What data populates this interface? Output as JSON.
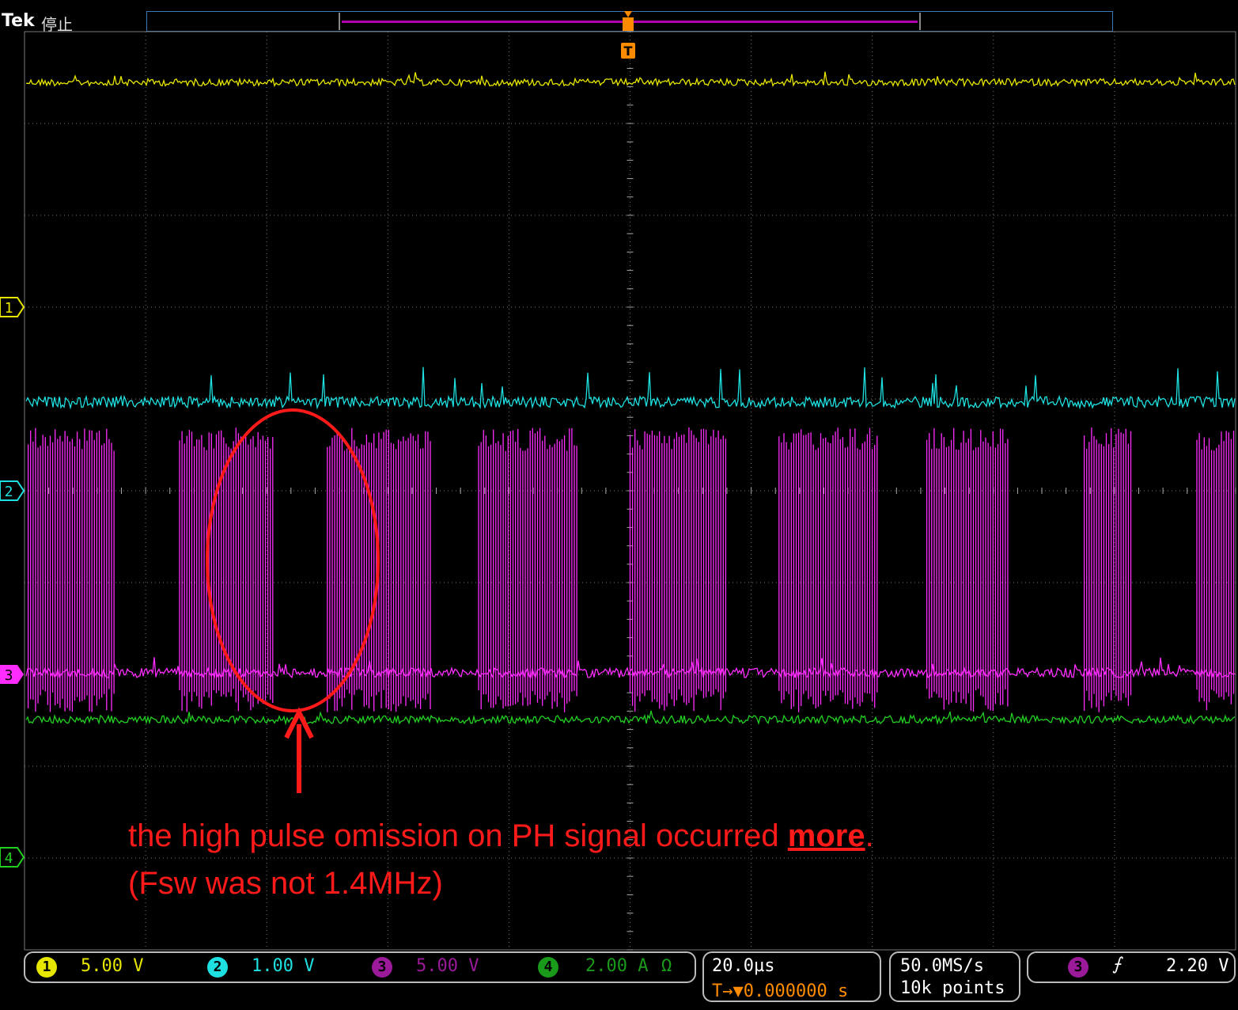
{
  "header": {
    "brand": "Tek",
    "acquisition_state": "停止"
  },
  "markers": {
    "trigger_top": "T",
    "ch1": "1",
    "ch2": "2",
    "ch3": "3",
    "ch4": "4"
  },
  "colors": {
    "ch1": "#e6e600",
    "ch2": "#1ee0e0",
    "ch3": "#ff2cff",
    "ch4": "#22d022",
    "annotation": "#ff1a1a",
    "grid": "#777777",
    "trigger": "#ff8c00"
  },
  "channels": [
    {
      "num": "1",
      "scale": "5.00 V"
    },
    {
      "num": "2",
      "scale": "1.00 V"
    },
    {
      "num": "3",
      "scale": "5.00 V"
    },
    {
      "num": "4",
      "scale": "2.00 A",
      "impedance_symbol": "Ω"
    }
  ],
  "horizontal": {
    "timebase": "20.0µs",
    "position": "0.000000 s",
    "position_prefix": "T→▼"
  },
  "acquisition": {
    "sample_rate": "50.0MS/s",
    "record_length": "10k points"
  },
  "trigger": {
    "source": "3",
    "slope": "rising",
    "slope_symbol": "⨍",
    "level": "2.20 V"
  },
  "annotation": {
    "line1_prefix": "the high pulse omission on PH signal occurred ",
    "line1_emphasis": "more",
    "line1_suffix": ".",
    "line2": "(Fsw was not 1.4MHz)"
  },
  "waveform": {
    "ch3_pulse_bursts_div": [
      [
        0.03,
        0.75
      ],
      [
        1.28,
        2.05
      ],
      [
        2.5,
        3.37
      ],
      [
        3.75,
        4.57
      ],
      [
        5.0,
        5.8
      ],
      [
        6.23,
        7.05
      ],
      [
        7.45,
        8.12
      ],
      [
        8.75,
        9.15
      ],
      [
        9.68,
        10.0
      ]
    ]
  }
}
